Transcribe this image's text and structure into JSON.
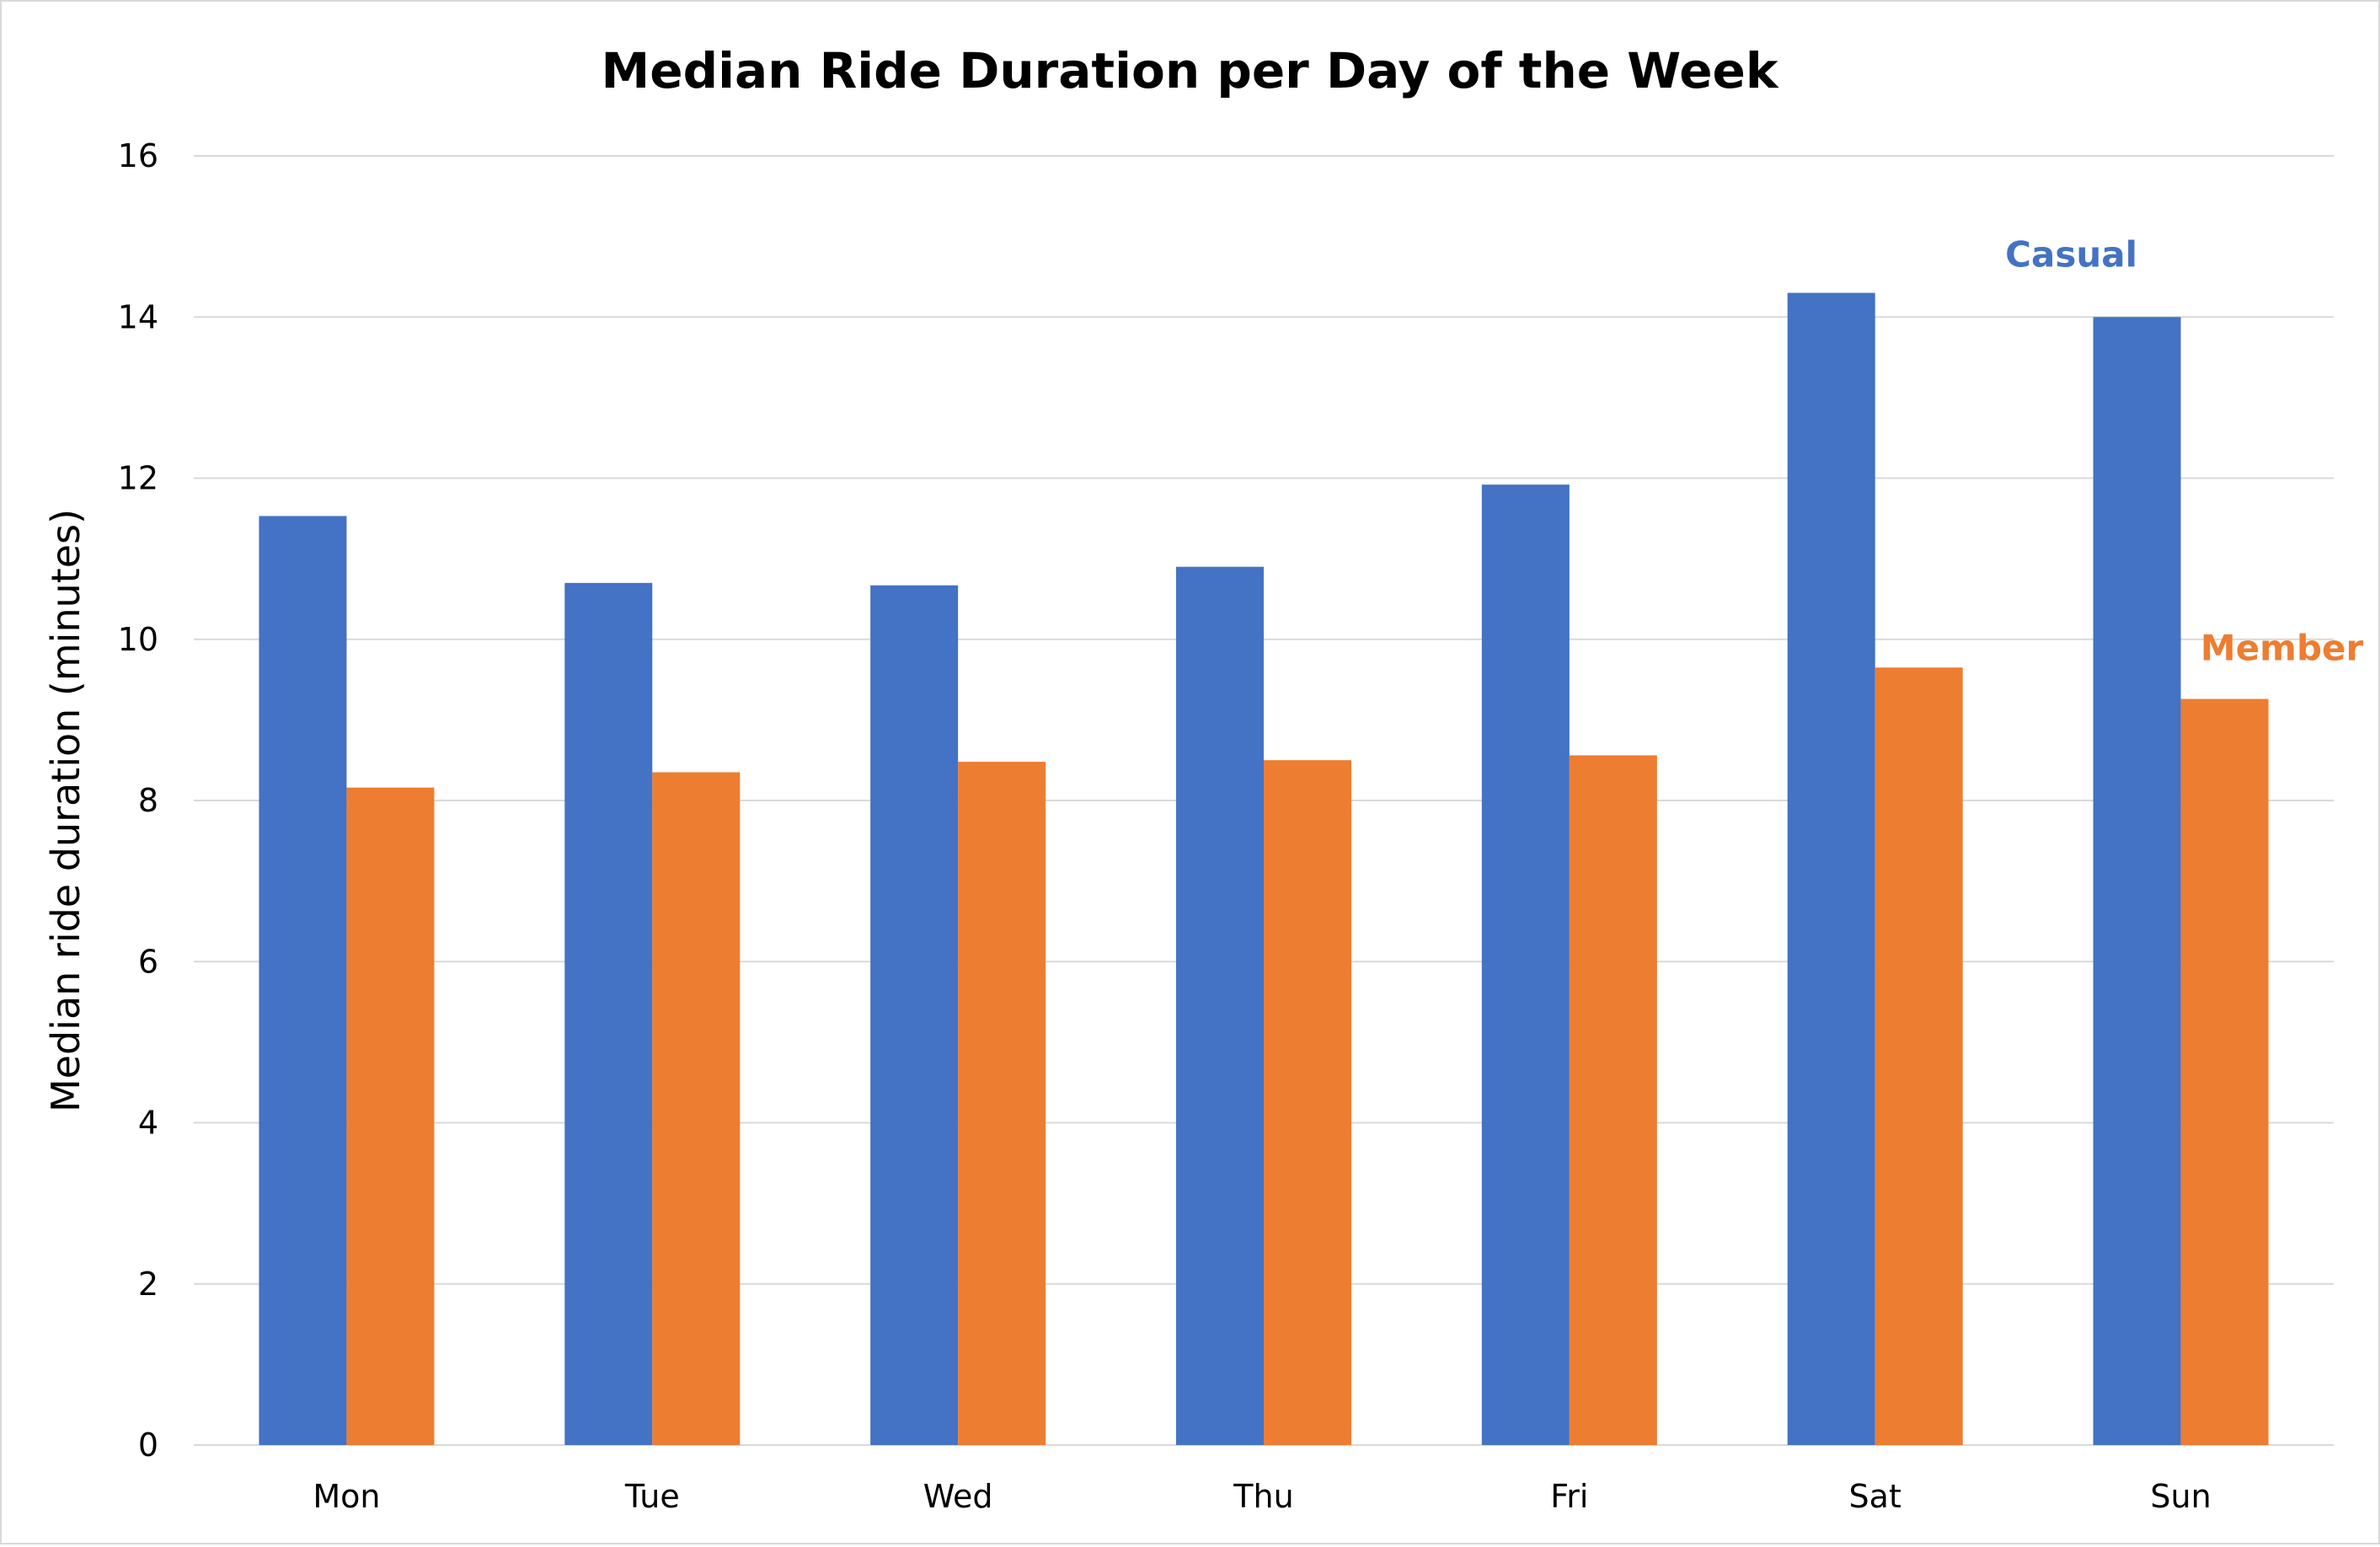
{
  "chart_data": {
    "type": "bar",
    "title": "Median Ride Duration per Day of the Week",
    "xlabel": "",
    "ylabel": "Median ride duration (minutes)",
    "categories": [
      "Mon",
      "Tue",
      "Wed",
      "Thu",
      "Fri",
      "Sat",
      "Sun"
    ],
    "ylim": [
      0,
      16
    ],
    "yticks": [
      "0",
      "2",
      "4",
      "6",
      "8",
      "10",
      "12",
      "14",
      "16"
    ],
    "grid": true,
    "legend": "direct labels near Sun bars",
    "series": [
      {
        "name": "Casual",
        "color": "#4472C4",
        "values": [
          11.53,
          10.7,
          10.67,
          10.9,
          11.92,
          14.3,
          14.0
        ]
      },
      {
        "name": "Member",
        "color": "#ED7D31",
        "values": [
          8.16,
          8.35,
          8.48,
          8.5,
          8.56,
          9.65,
          9.26
        ]
      }
    ],
    "gridline_color": "#d9d9d9"
  }
}
